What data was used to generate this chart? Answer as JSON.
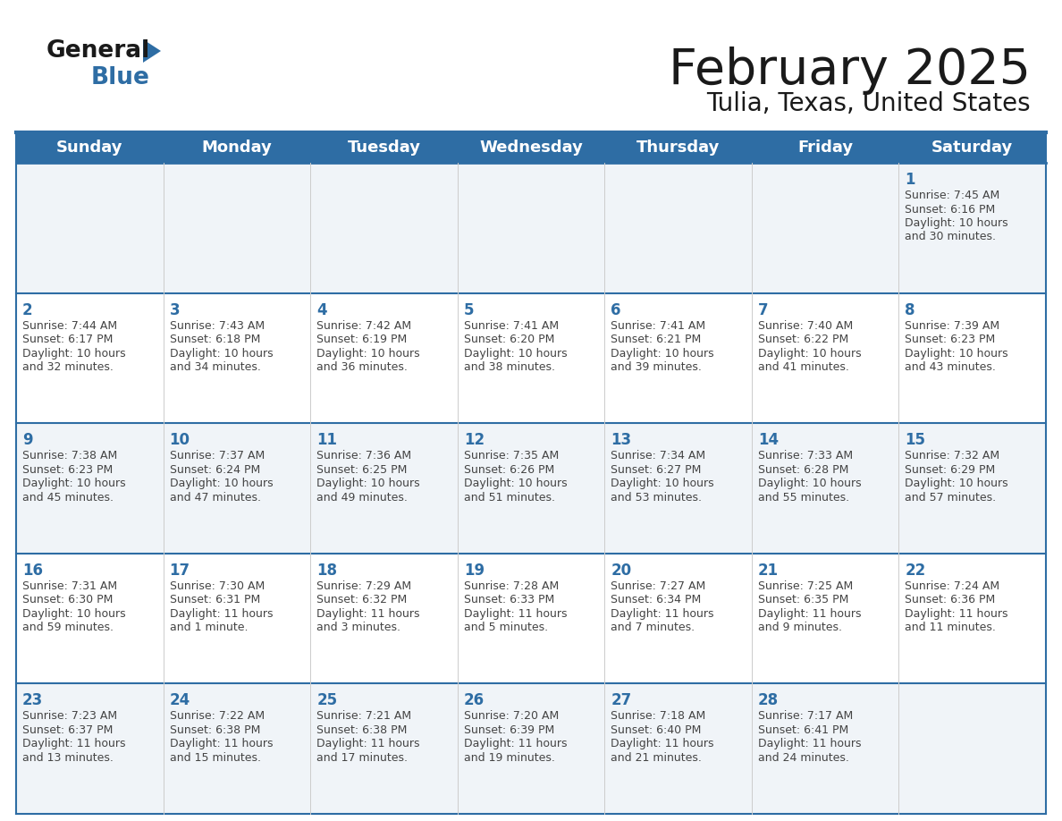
{
  "title": "February 2025",
  "subtitle": "Tulia, Texas, United States",
  "header_bg": "#2E6DA4",
  "header_text_color": "#FFFFFF",
  "day_number_color": "#2E6DA4",
  "text_color": "#444444",
  "line_color": "#2E6DA4",
  "cell_bg_odd": "#F0F4F8",
  "cell_bg_even": "#FFFFFF",
  "days_of_week": [
    "Sunday",
    "Monday",
    "Tuesday",
    "Wednesday",
    "Thursday",
    "Friday",
    "Saturday"
  ],
  "weeks": [
    [
      null,
      null,
      null,
      null,
      null,
      null,
      {
        "day": 1,
        "sunrise": "7:45 AM",
        "sunset": "6:16 PM",
        "daylight": "10 hours and 30 minutes."
      }
    ],
    [
      {
        "day": 2,
        "sunrise": "7:44 AM",
        "sunset": "6:17 PM",
        "daylight": "10 hours and 32 minutes."
      },
      {
        "day": 3,
        "sunrise": "7:43 AM",
        "sunset": "6:18 PM",
        "daylight": "10 hours and 34 minutes."
      },
      {
        "day": 4,
        "sunrise": "7:42 AM",
        "sunset": "6:19 PM",
        "daylight": "10 hours and 36 minutes."
      },
      {
        "day": 5,
        "sunrise": "7:41 AM",
        "sunset": "6:20 PM",
        "daylight": "10 hours and 38 minutes."
      },
      {
        "day": 6,
        "sunrise": "7:41 AM",
        "sunset": "6:21 PM",
        "daylight": "10 hours and 39 minutes."
      },
      {
        "day": 7,
        "sunrise": "7:40 AM",
        "sunset": "6:22 PM",
        "daylight": "10 hours and 41 minutes."
      },
      {
        "day": 8,
        "sunrise": "7:39 AM",
        "sunset": "6:23 PM",
        "daylight": "10 hours and 43 minutes."
      }
    ],
    [
      {
        "day": 9,
        "sunrise": "7:38 AM",
        "sunset": "6:23 PM",
        "daylight": "10 hours and 45 minutes."
      },
      {
        "day": 10,
        "sunrise": "7:37 AM",
        "sunset": "6:24 PM",
        "daylight": "10 hours and 47 minutes."
      },
      {
        "day": 11,
        "sunrise": "7:36 AM",
        "sunset": "6:25 PM",
        "daylight": "10 hours and 49 minutes."
      },
      {
        "day": 12,
        "sunrise": "7:35 AM",
        "sunset": "6:26 PM",
        "daylight": "10 hours and 51 minutes."
      },
      {
        "day": 13,
        "sunrise": "7:34 AM",
        "sunset": "6:27 PM",
        "daylight": "10 hours and 53 minutes."
      },
      {
        "day": 14,
        "sunrise": "7:33 AM",
        "sunset": "6:28 PM",
        "daylight": "10 hours and 55 minutes."
      },
      {
        "day": 15,
        "sunrise": "7:32 AM",
        "sunset": "6:29 PM",
        "daylight": "10 hours and 57 minutes."
      }
    ],
    [
      {
        "day": 16,
        "sunrise": "7:31 AM",
        "sunset": "6:30 PM",
        "daylight": "10 hours and 59 minutes."
      },
      {
        "day": 17,
        "sunrise": "7:30 AM",
        "sunset": "6:31 PM",
        "daylight": "11 hours and 1 minute."
      },
      {
        "day": 18,
        "sunrise": "7:29 AM",
        "sunset": "6:32 PM",
        "daylight": "11 hours and 3 minutes."
      },
      {
        "day": 19,
        "sunrise": "7:28 AM",
        "sunset": "6:33 PM",
        "daylight": "11 hours and 5 minutes."
      },
      {
        "day": 20,
        "sunrise": "7:27 AM",
        "sunset": "6:34 PM",
        "daylight": "11 hours and 7 minutes."
      },
      {
        "day": 21,
        "sunrise": "7:25 AM",
        "sunset": "6:35 PM",
        "daylight": "11 hours and 9 minutes."
      },
      {
        "day": 22,
        "sunrise": "7:24 AM",
        "sunset": "6:36 PM",
        "daylight": "11 hours and 11 minutes."
      }
    ],
    [
      {
        "day": 23,
        "sunrise": "7:23 AM",
        "sunset": "6:37 PM",
        "daylight": "11 hours and 13 minutes."
      },
      {
        "day": 24,
        "sunrise": "7:22 AM",
        "sunset": "6:38 PM",
        "daylight": "11 hours and 15 minutes."
      },
      {
        "day": 25,
        "sunrise": "7:21 AM",
        "sunset": "6:38 PM",
        "daylight": "11 hours and 17 minutes."
      },
      {
        "day": 26,
        "sunrise": "7:20 AM",
        "sunset": "6:39 PM",
        "daylight": "11 hours and 19 minutes."
      },
      {
        "day": 27,
        "sunrise": "7:18 AM",
        "sunset": "6:40 PM",
        "daylight": "11 hours and 21 minutes."
      },
      {
        "day": 28,
        "sunrise": "7:17 AM",
        "sunset": "6:41 PM",
        "daylight": "11 hours and 24 minutes."
      },
      null
    ]
  ]
}
